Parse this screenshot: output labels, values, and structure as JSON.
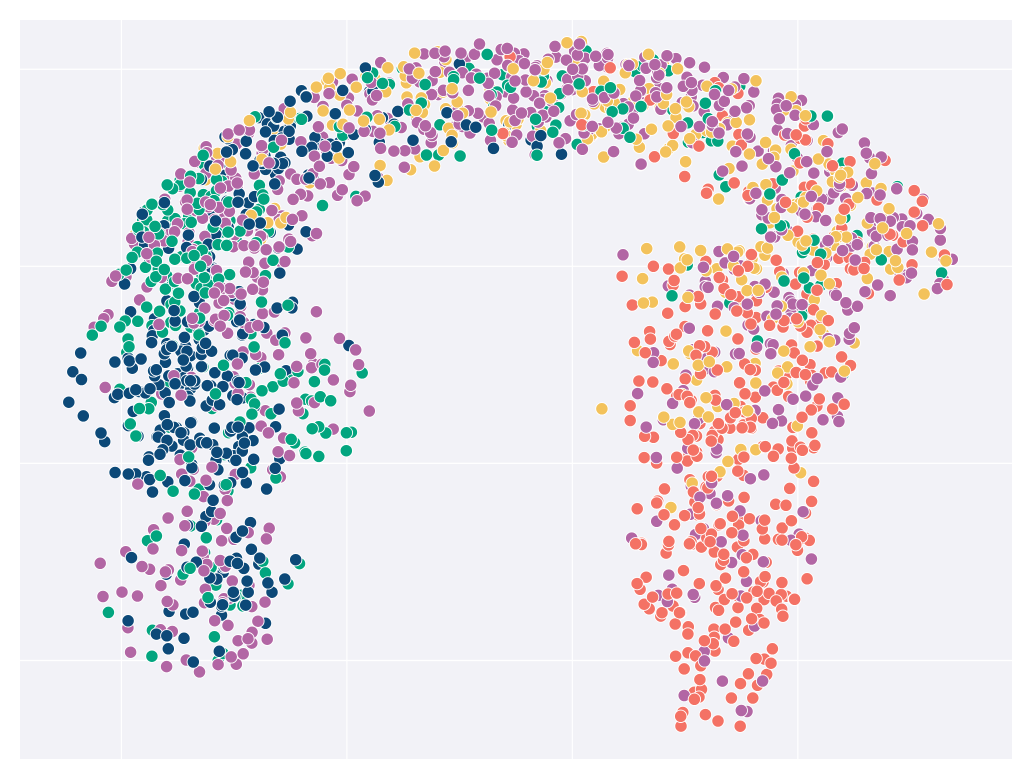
{
  "chart_data": {
    "type": "scatter",
    "title": "",
    "xlabel": "",
    "ylabel": "",
    "xlim": [
      -2.1,
      2.3
    ],
    "ylim": [
      -2.3,
      1.45
    ],
    "grid": true,
    "show_tick_labels": false,
    "x_gridlines": [
      -1.65,
      -0.65,
      0.35,
      1.35
    ],
    "y_gridlines": [
      1.2,
      0.2,
      -0.8,
      -1.8
    ],
    "colors": {
      "background": "#f2f2f7",
      "grid": "#ffffff",
      "marker_edge": "#ffffff",
      "series": [
        "#0c4978",
        "#02a57f",
        "#b266a4",
        "#f3c25b",
        "#f47265"
      ]
    },
    "series": [
      {
        "color": "#0c4978",
        "clusters": [
          {
            "cx": -1.35,
            "cy": -0.45,
            "sx": 0.22,
            "sy": 0.32,
            "n": 170
          },
          {
            "cx": -1.15,
            "cy": 0.35,
            "sx": 0.35,
            "sy": 0.35,
            "n": 60
          },
          {
            "cx": -0.95,
            "cy": 0.85,
            "sx": 0.2,
            "sy": 0.22,
            "n": 45
          },
          {
            "cx": -1.25,
            "cy": -1.4,
            "sx": 0.2,
            "sy": 0.35,
            "n": 50
          },
          {
            "cx": -0.2,
            "cy": 1.0,
            "sx": 0.4,
            "sy": 0.2,
            "n": 25
          }
        ]
      },
      {
        "color": "#02a57f",
        "clusters": [
          {
            "cx": -1.55,
            "cy": 0.55,
            "sx": 0.3,
            "sy": 0.35,
            "n": 110
          },
          {
            "cx": -1.0,
            "cy": -0.3,
            "sx": 0.32,
            "sy": 0.35,
            "n": 80
          },
          {
            "cx": -1.2,
            "cy": -1.35,
            "sx": 0.22,
            "sy": 0.35,
            "n": 30
          },
          {
            "cx": 0.3,
            "cy": 1.05,
            "sx": 0.85,
            "sy": 0.25,
            "n": 80
          },
          {
            "cx": 1.5,
            "cy": 0.3,
            "sx": 0.35,
            "sy": 0.35,
            "n": 30
          }
        ]
      },
      {
        "color": "#b266a4",
        "clusters": [
          {
            "cx": -1.3,
            "cy": 0.5,
            "sx": 0.5,
            "sy": 0.38,
            "n": 140
          },
          {
            "cx": -0.9,
            "cy": -0.2,
            "sx": 0.35,
            "sy": 0.5,
            "n": 90
          },
          {
            "cx": -1.25,
            "cy": -1.45,
            "sx": 0.25,
            "sy": 0.3,
            "n": 70
          },
          {
            "cx": 0.2,
            "cy": 1.1,
            "sx": 0.9,
            "sy": 0.22,
            "n": 230
          },
          {
            "cx": 1.55,
            "cy": 0.3,
            "sx": 0.4,
            "sy": 0.45,
            "n": 150
          },
          {
            "cx": 1.0,
            "cy": -0.9,
            "sx": 0.3,
            "sy": 0.7,
            "n": 80
          }
        ]
      },
      {
        "color": "#f3c25b",
        "clusters": [
          {
            "cx": -0.5,
            "cy": 1.0,
            "sx": 0.6,
            "sy": 0.3,
            "n": 90
          },
          {
            "cx": 0.6,
            "cy": 1.05,
            "sx": 0.6,
            "sy": 0.25,
            "n": 60
          },
          {
            "cx": 1.35,
            "cy": 0.45,
            "sx": 0.45,
            "sy": 0.35,
            "n": 120
          },
          {
            "cx": 1.0,
            "cy": -0.4,
            "sx": 0.25,
            "sy": 0.45,
            "n": 35
          }
        ]
      },
      {
        "color": "#f47265",
        "clusters": [
          {
            "cx": 1.3,
            "cy": 0.1,
            "sx": 0.45,
            "sy": 0.45,
            "n": 120
          },
          {
            "cx": 1.0,
            "cy": -0.9,
            "sx": 0.3,
            "sy": 0.5,
            "n": 170
          },
          {
            "cx": 1.05,
            "cy": -1.7,
            "sx": 0.2,
            "sy": 0.35,
            "n": 70
          },
          {
            "cx": 0.9,
            "cy": 0.95,
            "sx": 0.55,
            "sy": 0.25,
            "n": 25
          }
        ]
      }
    ]
  }
}
